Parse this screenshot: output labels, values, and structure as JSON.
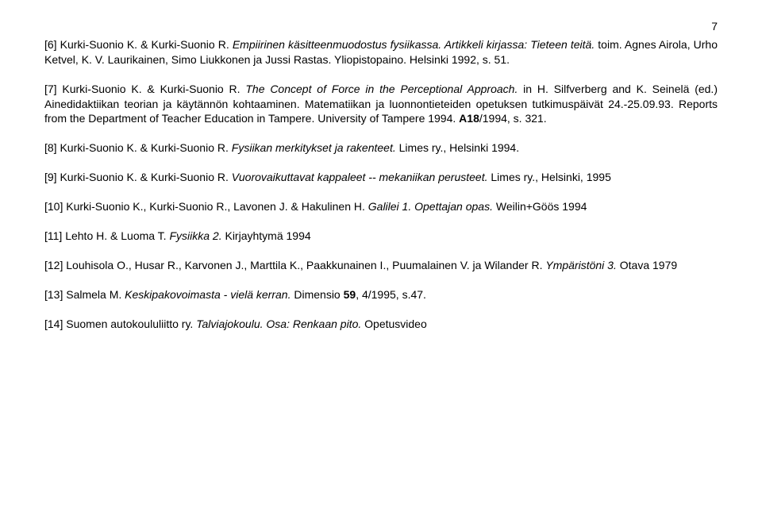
{
  "page_number": "7",
  "refs": [
    {
      "parts": [
        {
          "t": "[6] Kurki-Suonio K. & Kurki-Suonio R. "
        },
        {
          "t": "Empiirinen käsitteenmuodostus fysiikassa. Artikkeli kirjassa: Tieteen teitä.",
          "style": "italic"
        },
        {
          "t": " toim. Agnes Airola, Urho Ketvel, K. V. Laurikainen, Simo Liukkonen ja Jussi Rastas. Yliopistopaino. Helsinki 1992, s. 51."
        }
      ]
    },
    {
      "parts": [
        {
          "t": "[7] Kurki-Suonio K. & Kurki-Suonio R. "
        },
        {
          "t": "The Concept of Force in the Perceptional Approach.",
          "style": "italic"
        },
        {
          "t": " in H. Silfverberg and K. Seinelä (ed.) Ainedidaktiikan teorian ja käytännön kohtaaminen. Matematiikan ja luonnontieteiden opetuksen tutkimuspäivät 24.-25.09.93. Reports from the Department of Teacher Education in Tampere. University of Tampere 1994. "
        },
        {
          "t": "A18",
          "style": "bold"
        },
        {
          "t": "/1994, s. 321."
        }
      ]
    },
    {
      "parts": [
        {
          "t": "[8] Kurki-Suonio K. & Kurki-Suonio R. "
        },
        {
          "t": "Fysiikan merkitykset ja rakenteet.",
          "style": "italic"
        },
        {
          "t": " Limes ry., Helsinki 1994."
        }
      ]
    },
    {
      "parts": [
        {
          "t": "[9] Kurki-Suonio K. & Kurki-Suonio R. "
        },
        {
          "t": "Vuorovaikuttavat kappaleet -- mekaniikan perusteet.",
          "style": "italic"
        },
        {
          "t": " Limes ry., Helsinki, 1995"
        }
      ]
    },
    {
      "parts": [
        {
          "t": "[10] Kurki-Suonio K., Kurki-Suonio R., Lavonen J. & Hakulinen H. "
        },
        {
          "t": "Galilei 1. Opettajan opas.",
          "style": "italic"
        },
        {
          "t": " Weilin+Göös 1994"
        }
      ]
    },
    {
      "parts": [
        {
          "t": "[11] Lehto H. & Luoma T. "
        },
        {
          "t": "Fysiikka 2.",
          "style": "italic"
        },
        {
          "t": " Kirjayhtymä 1994"
        }
      ]
    },
    {
      "parts": [
        {
          "t": "[12] Louhisola O., Husar R., Karvonen J., Marttila K., Paakkunainen I., Puumalainen V. ja Wilander R. "
        },
        {
          "t": "Ympäristöni 3.",
          "style": "italic"
        },
        {
          "t": " Otava 1979"
        }
      ]
    },
    {
      "parts": [
        {
          "t": "[13] Salmela M. "
        },
        {
          "t": "Keskipakovoimasta - vielä kerran.",
          "style": "italic"
        },
        {
          "t": " Dimensio "
        },
        {
          "t": "59",
          "style": "bold"
        },
        {
          "t": ", 4/1995, s.47."
        }
      ]
    },
    {
      "parts": [
        {
          "t": "[14] Suomen autokoululiitto ry. "
        },
        {
          "t": "Talviajokoulu. Osa: Renkaan pito.",
          "style": "italic"
        },
        {
          "t": " Opetusvideo"
        }
      ]
    }
  ]
}
